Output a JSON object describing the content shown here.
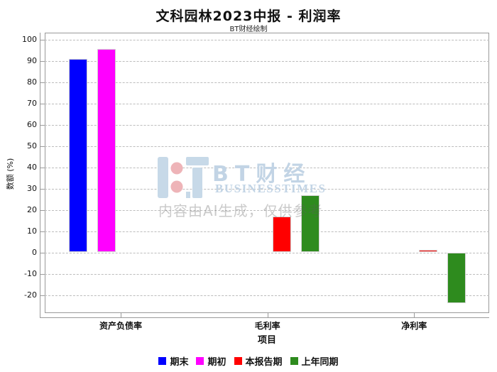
{
  "page": {
    "title": "文科园林2023中报 - 利润率",
    "subtitle": "BT财经绘制"
  },
  "watermark": {
    "logo_icon": "bt-logo",
    "brand_cn": "BT财经",
    "brand_en": "BUSINESSTIMES",
    "disclaimer": "内容由AI生成，仅供参考",
    "brand_color": "#c2d4e5",
    "logo_dot_color": "#eeb4b8"
  },
  "chart_data": {
    "type": "bar",
    "title": "文科园林2023中报 - 利润率",
    "subtitle": "BT财经绘制",
    "categories": [
      "资产负债率",
      "毛利率",
      "净利率"
    ],
    "series": [
      {
        "name": "期末",
        "color": "#0000ff",
        "values": [
          90.8,
          null,
          null
        ]
      },
      {
        "name": "期初",
        "color": "#ff00ff",
        "values": [
          95.4,
          null,
          null
        ]
      },
      {
        "name": "本报告期",
        "color": "#ff0000",
        "values": [
          null,
          17.0,
          1.1
        ]
      },
      {
        "name": "上年同期",
        "color": "#2e8b1e",
        "values": [
          null,
          27.0,
          -23.8
        ]
      }
    ],
    "xlabel": "项目",
    "ylabel": "数额 (%)",
    "ylim": [
      -28.5,
      103.17
    ],
    "yticks": [
      100,
      90,
      80,
      70,
      60,
      50,
      40,
      30,
      20,
      10,
      0,
      -10,
      -20
    ],
    "grid": "dashed",
    "legend_position": "bottom"
  }
}
